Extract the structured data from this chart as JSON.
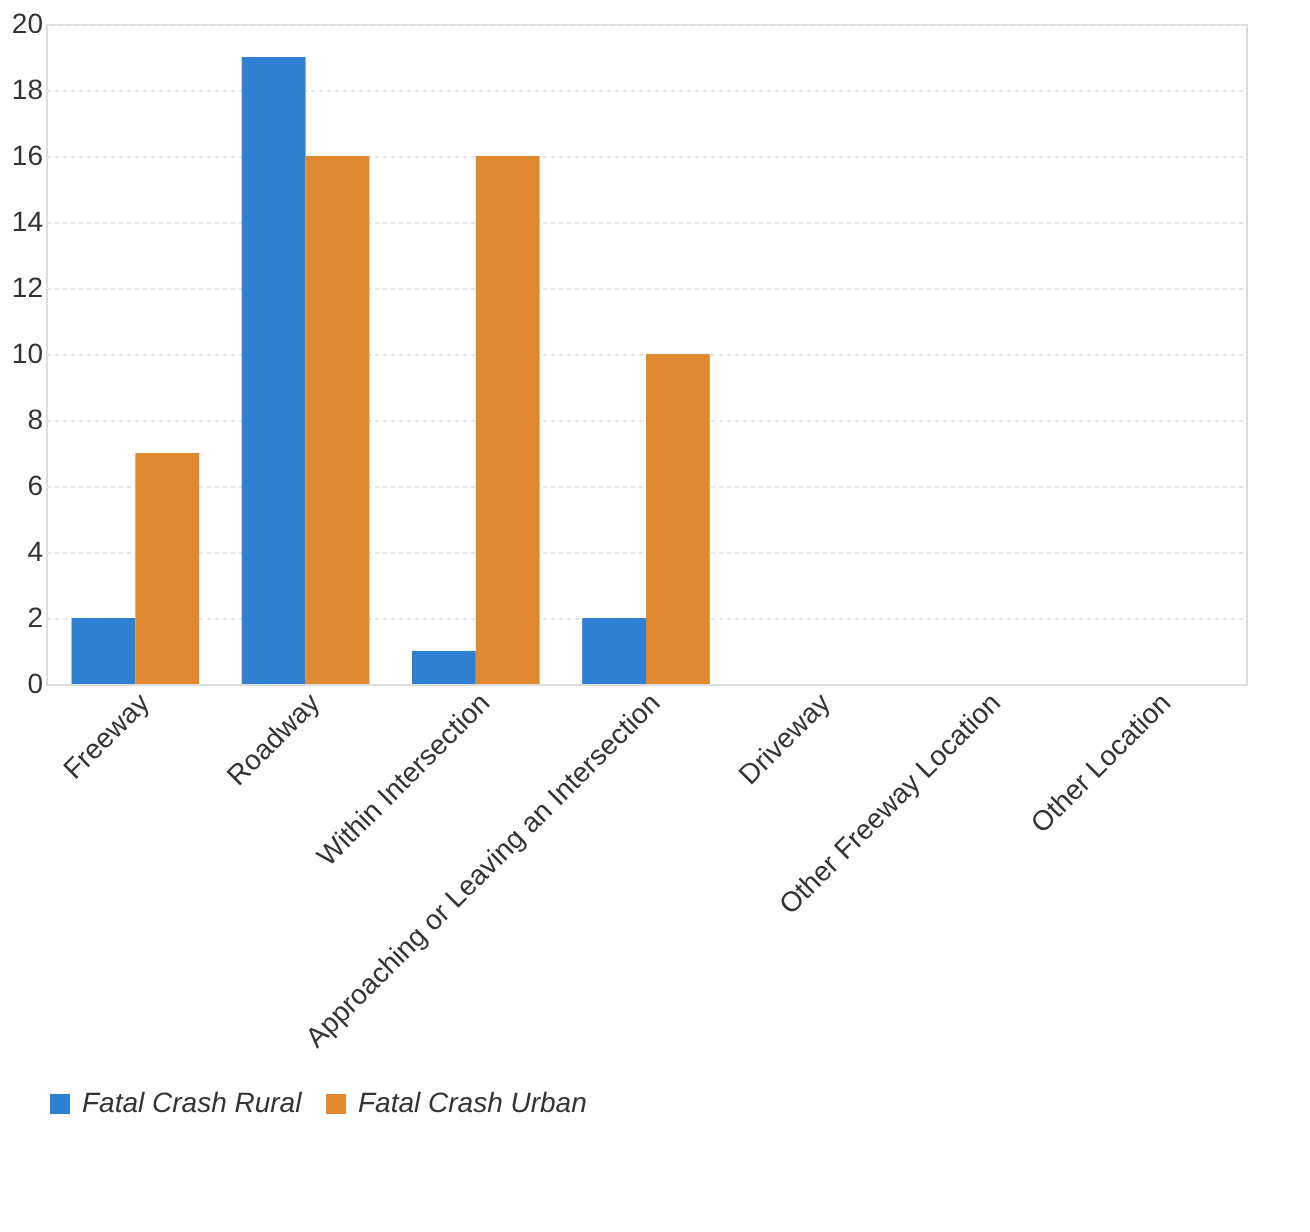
{
  "chart_data": {
    "type": "bar",
    "categories": [
      "Freeway",
      "Roadway",
      "Within Intersection",
      "Approaching or Leaving an Intersection",
      "Driveway",
      "Other Freeway Location",
      "Other Location"
    ],
    "series": [
      {
        "name": "Fatal Crash Rural",
        "color": "#2f7fd3",
        "values": [
          2,
          19,
          1,
          2,
          0,
          0,
          0
        ]
      },
      {
        "name": "Fatal Crash Urban",
        "color": "#e0892f",
        "values": [
          7,
          16,
          16,
          10,
          0,
          0,
          0
        ]
      }
    ],
    "ylim": [
      0,
      20
    ],
    "yticks": [
      0,
      2,
      4,
      6,
      8,
      10,
      12,
      14,
      16,
      18,
      20
    ],
    "grid": "y",
    "legend": "bottom"
  }
}
